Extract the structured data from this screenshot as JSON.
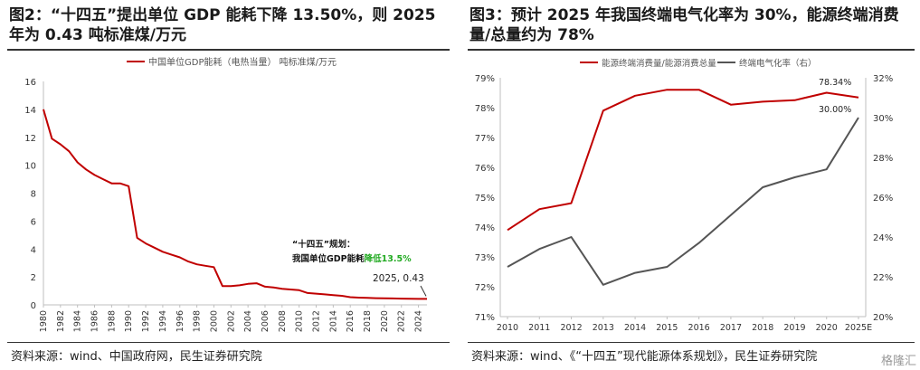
{
  "left": {
    "title": "图2：“十四五”提出单位 GDP 能耗下降 13.50%，则 2025 年为 0.43 吨标准煤/万元",
    "source": "资料来源：wind、中国政府网，民生证券研究院",
    "annotation_title": "“十四五”规划：",
    "annotation_prefix": "我国单位GDP能耗",
    "annotation_highlight": "降低13.5%",
    "callout": "2025, 0.43",
    "highlight_color": "#22aa22",
    "line_color": "#c00000"
  },
  "right": {
    "title": "图3：预计 2025 年我国终端电气化率为 30%，能源终端消费量/总量约为 78%",
    "source": "资料来源：wind、《“十四五”现代能源体系规划》，民生证券研究院",
    "label_2025_left": "78.34%",
    "label_2025_right": "30.00%",
    "left_color": "#c00000",
    "right_color": "#555555"
  },
  "watermark": "格隆汇",
  "chart_data": [
    {
      "type": "line",
      "series": [
        {
          "name": "中国单位GDP能耗（电热当量） 吨标准煤/万元",
          "x": [
            1980,
            1981,
            1982,
            1983,
            1984,
            1985,
            1986,
            1987,
            1988,
            1989,
            1990,
            1991,
            1992,
            1993,
            1994,
            1995,
            1996,
            1997,
            1998,
            1999,
            2000,
            2001,
            2002,
            2003,
            2004,
            2005,
            2006,
            2007,
            2008,
            2009,
            2010,
            2011,
            2012,
            2013,
            2014,
            2015,
            2016,
            2017,
            2018,
            2019,
            2020,
            2021,
            2022,
            2023,
            2024,
            2025
          ],
          "values": [
            14.0,
            11.9,
            11.5,
            11.0,
            10.2,
            9.7,
            9.3,
            9.0,
            8.7,
            8.7,
            8.5,
            4.8,
            4.4,
            4.1,
            3.8,
            3.6,
            3.4,
            3.1,
            2.9,
            2.8,
            2.7,
            1.35,
            1.35,
            1.4,
            1.5,
            1.55,
            1.3,
            1.25,
            1.15,
            1.1,
            1.05,
            0.85,
            0.8,
            0.75,
            0.7,
            0.65,
            0.55,
            0.52,
            0.5,
            0.48,
            0.47,
            0.46,
            0.45,
            0.44,
            0.43,
            0.43
          ]
        }
      ],
      "xticks": [
        "1980",
        "1982",
        "1984",
        "1986",
        "1988",
        "1990",
        "1992",
        "1994",
        "1996",
        "1998",
        "2000",
        "2002",
        "2004",
        "2006",
        "2008",
        "2010",
        "2012",
        "2014",
        "2016",
        "2018",
        "2020",
        "2022",
        "2024"
      ],
      "yticks": [
        "0",
        "2",
        "4",
        "6",
        "8",
        "10",
        "12",
        "14",
        "16"
      ],
      "xlim": [
        1980,
        2025
      ],
      "ylim": [
        0,
        16
      ],
      "legend": "top-center",
      "grid": false
    },
    {
      "type": "line",
      "categories": [
        "2010",
        "2011",
        "2012",
        "2013",
        "2014",
        "2015",
        "2016",
        "2017",
        "2018",
        "2019",
        "2020",
        "2025E"
      ],
      "series": [
        {
          "name": "能源终端消费量/能源消费总量",
          "axis": "left",
          "values": [
            73.9,
            74.6,
            74.8,
            77.9,
            78.4,
            78.6,
            78.6,
            78.1,
            78.2,
            78.25,
            78.5,
            78.34
          ]
        },
        {
          "name": "终端电气化率（右）",
          "axis": "right",
          "values": [
            22.5,
            23.4,
            24.0,
            21.6,
            22.2,
            22.5,
            23.7,
            25.1,
            26.5,
            27.0,
            27.4,
            30.0
          ]
        }
      ],
      "yticks_left": [
        "71%",
        "72%",
        "73%",
        "74%",
        "75%",
        "76%",
        "77%",
        "78%",
        "79%"
      ],
      "yticks_right": [
        "20%",
        "22%",
        "24%",
        "26%",
        "28%",
        "30%",
        "32%"
      ],
      "ylim_left": [
        71,
        79
      ],
      "ylim_right": [
        20,
        32
      ],
      "legend": "top-center",
      "grid": false
    }
  ]
}
